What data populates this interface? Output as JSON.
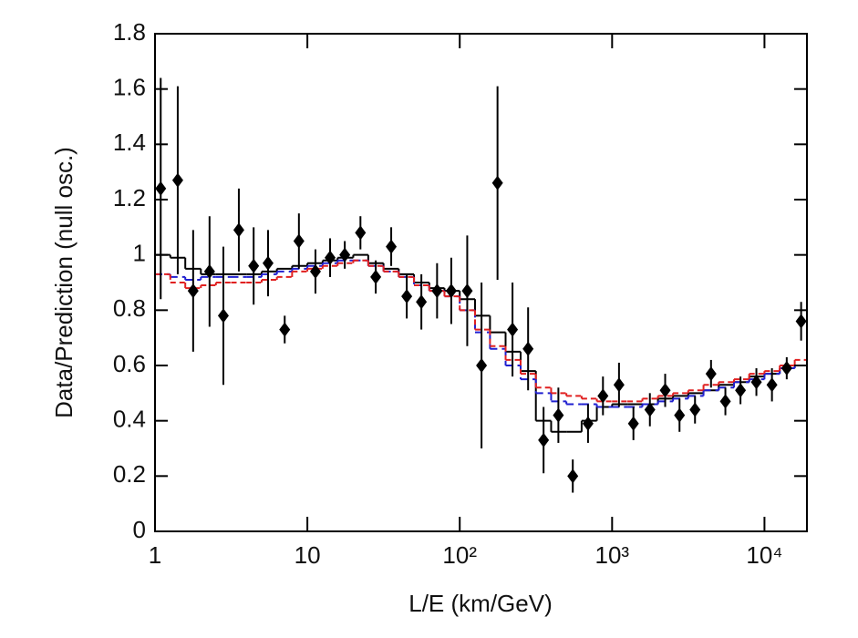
{
  "chart_data": {
    "type": "scatter",
    "x_label": "L/E (km/GeV)",
    "y_label": "Data/Prediction (null osc.)",
    "log_x": true,
    "xlim": [
      1,
      19000
    ],
    "ylim": [
      0,
      1.8
    ],
    "xticks": [
      1,
      10,
      {
        "value": 100,
        "label": "10²"
      },
      {
        "value": 1000,
        "label": "10³"
      },
      {
        "value": 10000,
        "label": "10⁴"
      }
    ],
    "yticks": [
      0,
      0.2,
      0.4,
      0.6,
      0.8,
      1,
      1.2,
      1.4,
      1.6,
      1.8
    ],
    "points": {
      "color": "#000000",
      "x": [
        1.09,
        1.41,
        1.78,
        2.28,
        2.81,
        3.55,
        4.44,
        5.52,
        7.1,
        8.8,
        11.3,
        14.1,
        17.6,
        22.3,
        28.1,
        35.5,
        44.9,
        56,
        71,
        88,
        112,
        139,
        177,
        222,
        281,
        355,
        444,
        552,
        695,
        871,
        1110,
        1380,
        1770,
        2230,
        2770,
        3500,
        4460,
        5540,
        6960,
        8850,
        11200,
        14000,
        17400
      ],
      "values": [
        1.24,
        1.27,
        0.87,
        0.94,
        0.78,
        1.09,
        0.96,
        0.97,
        0.73,
        1.05,
        0.94,
        0.99,
        1.0,
        1.08,
        0.92,
        1.03,
        0.85,
        0.83,
        0.87,
        0.87,
        0.87,
        0.6,
        1.26,
        0.73,
        0.66,
        0.33,
        0.42,
        0.2,
        0.39,
        0.49,
        0.53,
        0.39,
        0.44,
        0.51,
        0.42,
        0.44,
        0.57,
        0.47,
        0.51,
        0.54,
        0.53,
        0.59,
        0.76
      ],
      "errors": [
        0.4,
        0.34,
        0.22,
        0.2,
        0.25,
        0.15,
        0.14,
        0.12,
        0.05,
        0.1,
        0.08,
        0.07,
        0.05,
        0.06,
        0.06,
        0.07,
        0.08,
        0.1,
        0.1,
        0.12,
        0.2,
        0.3,
        0.35,
        0.17,
        0.15,
        0.12,
        0.1,
        0.06,
        0.07,
        0.07,
        0.08,
        0.06,
        0.06,
        0.06,
        0.06,
        0.05,
        0.05,
        0.05,
        0.05,
        0.05,
        0.06,
        0.04,
        0.07
      ]
    },
    "bins": [
      1,
      1.26,
      1.58,
      2.0,
      2.51,
      3.16,
      3.98,
      5.01,
      6.31,
      7.94,
      10,
      12.6,
      15.8,
      20.0,
      25.1,
      31.6,
      39.8,
      50.1,
      63.1,
      79.4,
      100,
      126,
      158,
      200,
      251,
      316,
      398,
      501,
      631,
      794,
      1000,
      1260,
      1580,
      2000,
      2510,
      3160,
      3980,
      5010,
      6310,
      7940,
      10000,
      12600,
      15800,
      19950
    ],
    "steps": [
      {
        "color": "#000000",
        "dash": "none",
        "values": [
          1.0,
          0.99,
          0.95,
          0.93,
          0.93,
          0.93,
          0.93,
          0.94,
          0.95,
          0.96,
          0.97,
          0.98,
          0.99,
          1.0,
          0.97,
          0.95,
          0.93,
          0.9,
          0.88,
          0.87,
          0.84,
          0.78,
          0.72,
          0.65,
          0.58,
          0.4,
          0.36,
          0.36,
          0.4,
          0.45,
          0.46,
          0.46,
          0.46,
          0.48,
          0.49,
          0.5,
          0.51,
          0.53,
          0.54,
          0.56,
          0.57,
          0.59,
          0.6
        ]
      },
      {
        "color": "#2020d0",
        "dash": "8 5",
        "values": [
          0.93,
          0.92,
          0.91,
          0.92,
          0.92,
          0.92,
          0.92,
          0.93,
          0.94,
          0.95,
          0.96,
          0.97,
          0.98,
          0.98,
          0.96,
          0.94,
          0.92,
          0.89,
          0.87,
          0.85,
          0.8,
          0.72,
          0.66,
          0.6,
          0.55,
          0.5,
          0.47,
          0.46,
          0.46,
          0.45,
          0.45,
          0.45,
          0.46,
          0.47,
          0.48,
          0.49,
          0.51,
          0.52,
          0.54,
          0.55,
          0.57,
          0.59,
          0.6
        ]
      },
      {
        "color": "#e02020",
        "dash": "6 4",
        "values": [
          0.93,
          0.9,
          0.88,
          0.89,
          0.9,
          0.9,
          0.9,
          0.91,
          0.92,
          0.94,
          0.95,
          0.96,
          0.97,
          0.98,
          0.96,
          0.94,
          0.92,
          0.89,
          0.87,
          0.85,
          0.8,
          0.73,
          0.67,
          0.62,
          0.57,
          0.52,
          0.5,
          0.49,
          0.48,
          0.47,
          0.47,
          0.47,
          0.48,
          0.49,
          0.5,
          0.51,
          0.53,
          0.54,
          0.55,
          0.57,
          0.58,
          0.6,
          0.62
        ]
      }
    ]
  }
}
